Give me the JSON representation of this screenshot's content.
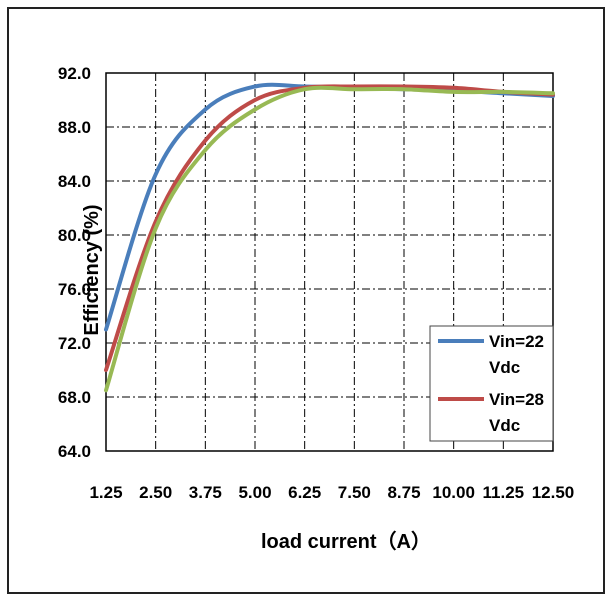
{
  "chart_data": {
    "type": "line",
    "xlabel": "load current（A）",
    "ylabel": "Efficiency (%)",
    "ylim": [
      64.0,
      92.0
    ],
    "y_ticks": [
      "92.0",
      "88.0",
      "84.0",
      "80.0",
      "76.0",
      "72.0",
      "68.0",
      "64.0"
    ],
    "x_ticks": [
      "1.25",
      "2.50",
      "3.75",
      "5.00",
      "6.25",
      "7.50",
      "8.75",
      "10.00",
      "11.25",
      "12.50"
    ],
    "x": [
      1.25,
      2.5,
      3.75,
      5.0,
      6.25,
      7.5,
      8.75,
      10.0,
      11.25,
      12.5
    ],
    "grid": true,
    "legend_position": "bottom-right",
    "series": [
      {
        "name": "Vin=22 Vdc",
        "color": "#4a7ebb",
        "values": [
          73.0,
          84.5,
          89.3,
          91.0,
          91.0,
          90.9,
          90.8,
          90.7,
          90.5,
          90.3
        ]
      },
      {
        "name": "Vin=28 Vdc",
        "color": "#be4b48",
        "values": [
          70.0,
          81.0,
          87.0,
          90.0,
          90.9,
          91.0,
          91.0,
          90.9,
          90.6,
          90.4
        ]
      },
      {
        "name": "",
        "color": "#98b954",
        "values": [
          68.5,
          80.5,
          86.3,
          89.3,
          90.8,
          90.8,
          90.8,
          90.6,
          90.6,
          90.5
        ]
      }
    ],
    "legend": [
      {
        "line1": "Vin=22",
        "line2": "Vdc",
        "color": "#4a7ebb"
      },
      {
        "line1": "Vin=28",
        "line2": "Vdc",
        "color": "#be4b48"
      }
    ]
  }
}
